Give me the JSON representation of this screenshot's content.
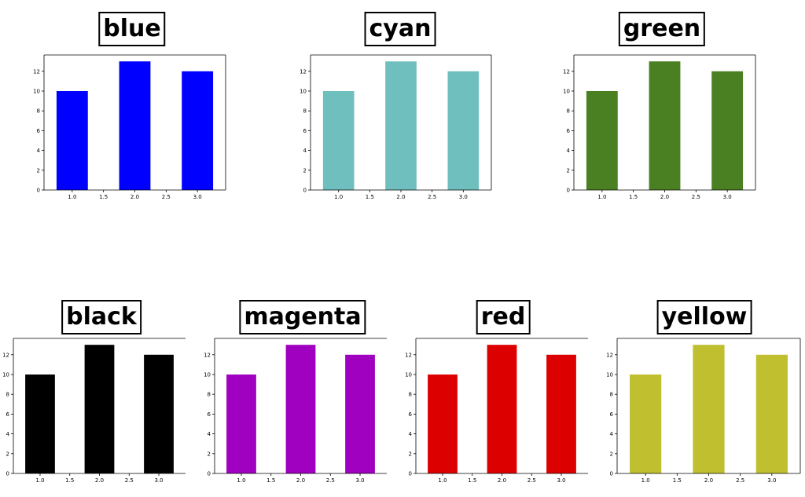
{
  "chart_data": [
    {
      "type": "bar",
      "title": "blue",
      "x": [
        1.0,
        2.0,
        3.0
      ],
      "values": [
        10,
        13,
        12
      ],
      "color": "#0000ff",
      "xticks": [
        "1.0",
        "1.5",
        "2.0",
        "2.5",
        "3.0"
      ],
      "yticks": [
        "0",
        "2",
        "4",
        "6",
        "8",
        "10",
        "12"
      ],
      "ylim": [
        0,
        13.65
      ],
      "xlim": [
        0.55,
        3.45
      ],
      "xlabel": "",
      "ylabel": "",
      "grid": false
    },
    {
      "type": "bar",
      "title": "cyan",
      "x": [
        1.0,
        2.0,
        3.0
      ],
      "values": [
        10,
        13,
        12
      ],
      "color": "#6fbfbf",
      "xticks": [
        "1.0",
        "1.5",
        "2.0",
        "2.5",
        "3.0"
      ],
      "yticks": [
        "0",
        "2",
        "4",
        "6",
        "8",
        "10",
        "12"
      ],
      "ylim": [
        0,
        13.65
      ],
      "xlim": [
        0.55,
        3.45
      ],
      "xlabel": "",
      "ylabel": "",
      "grid": false
    },
    {
      "type": "bar",
      "title": "green",
      "x": [
        1.0,
        2.0,
        3.0
      ],
      "values": [
        10,
        13,
        12
      ],
      "color": "#4a7f22",
      "xticks": [
        "1.0",
        "1.5",
        "2.0",
        "2.5",
        "3.0"
      ],
      "yticks": [
        "0",
        "2",
        "4",
        "6",
        "8",
        "10",
        "12"
      ],
      "ylim": [
        0,
        13.65
      ],
      "xlim": [
        0.55,
        3.45
      ],
      "xlabel": "",
      "ylabel": "",
      "grid": false
    },
    {
      "type": "bar",
      "title": "black",
      "x": [
        1.0,
        2.0,
        3.0
      ],
      "values": [
        10,
        13,
        12
      ],
      "color": "#000000",
      "xticks": [
        "1.0",
        "1.5",
        "2.0",
        "2.5",
        "3.0"
      ],
      "yticks": [
        "0",
        "2",
        "4",
        "6",
        "8",
        "10",
        "12"
      ],
      "ylim": [
        0,
        13.65
      ],
      "xlim": [
        0.55,
        3.45
      ],
      "xlabel": "",
      "ylabel": "",
      "grid": false
    },
    {
      "type": "bar",
      "title": "magenta",
      "x": [
        1.0,
        2.0,
        3.0
      ],
      "values": [
        10,
        13,
        12
      ],
      "color": "#a000bf",
      "xticks": [
        "1.0",
        "1.5",
        "2.0",
        "2.5",
        "3.0"
      ],
      "yticks": [
        "0",
        "2",
        "4",
        "6",
        "8",
        "10",
        "12"
      ],
      "ylim": [
        0,
        13.65
      ],
      "xlim": [
        0.55,
        3.45
      ],
      "xlabel": "",
      "ylabel": "",
      "grid": false
    },
    {
      "type": "bar",
      "title": "red",
      "x": [
        1.0,
        2.0,
        3.0
      ],
      "values": [
        10,
        13,
        12
      ],
      "color": "#dd0000",
      "xticks": [
        "1.0",
        "1.5",
        "2.0",
        "2.5",
        "3.0"
      ],
      "yticks": [
        "0",
        "2",
        "4",
        "6",
        "8",
        "10",
        "12"
      ],
      "ylim": [
        0,
        13.65
      ],
      "xlim": [
        0.55,
        3.45
      ],
      "xlabel": "",
      "ylabel": "",
      "grid": false
    },
    {
      "type": "bar",
      "title": "yellow",
      "x": [
        1.0,
        2.0,
        3.0
      ],
      "values": [
        10,
        13,
        12
      ],
      "color": "#bfbf2f",
      "xticks": [
        "1.0",
        "1.5",
        "2.0",
        "2.5",
        "3.0"
      ],
      "yticks": [
        "0",
        "2",
        "4",
        "6",
        "8",
        "10",
        "12"
      ],
      "ylim": [
        0,
        13.65
      ],
      "xlim": [
        0.55,
        3.45
      ],
      "xlabel": "",
      "ylabel": "",
      "grid": false
    }
  ]
}
